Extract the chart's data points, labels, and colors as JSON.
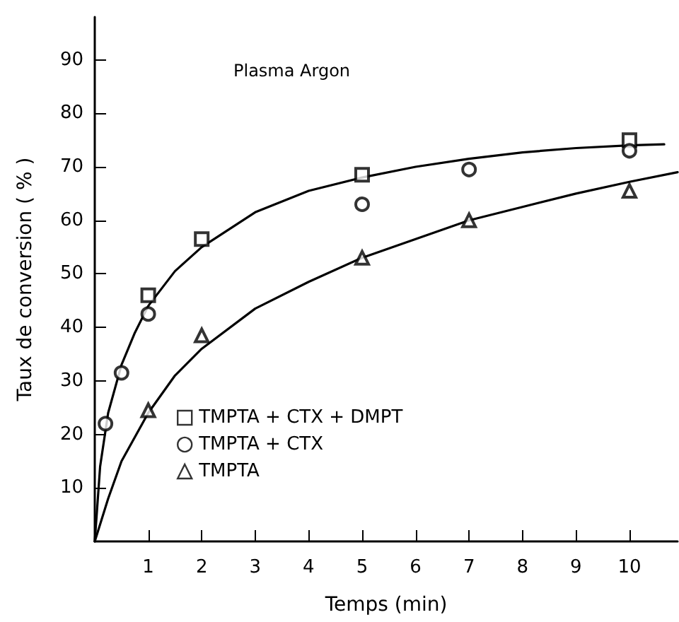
{
  "chart_data": {
    "type": "scatter",
    "xlabel": "Temps (min)",
    "ylabel": "Taux de conversion ( % )",
    "annotations": [
      "Plasma Argon"
    ],
    "xlim": [
      0,
      10.9
    ],
    "xticks": [
      1,
      2,
      3,
      4,
      5,
      6,
      7,
      8,
      9,
      10
    ],
    "ylim": [
      0,
      98
    ],
    "yticks": [
      10,
      20,
      30,
      40,
      50,
      60,
      70,
      80,
      90
    ],
    "grid": false,
    "legend": "bottom left",
    "series": [
      {
        "name": "TMPTA + CTX + DMPT",
        "color": "#000000",
        "marker": "square",
        "x": [
          1,
          2,
          5,
          10
        ],
        "values": [
          46,
          56.5,
          68.5,
          75
        ]
      },
      {
        "name": "TMPTA + CTX",
        "color": "#000000",
        "marker": "circle",
        "x": [
          0.2,
          0.5,
          1,
          5,
          7,
          10
        ],
        "values": [
          22,
          31.5,
          42.5,
          63,
          69.5,
          73
        ]
      },
      {
        "name": "TMPTA",
        "color": "#000000",
        "marker": "triangle",
        "x": [
          1,
          2,
          5,
          7,
          10
        ],
        "values": [
          24.5,
          38.5,
          53,
          60,
          65.5
        ]
      },
      {
        "type": "line",
        "color": "#000000",
        "marker": "none",
        "x": [
          0,
          0.1,
          0.25,
          0.5,
          0.75,
          1,
          1.5,
          2,
          3,
          4,
          5,
          6,
          7,
          8,
          9,
          10,
          10.65
        ],
        "values": [
          0,
          14,
          24,
          33,
          39,
          44,
          50.5,
          55,
          61.5,
          65.5,
          68,
          70,
          71.5,
          72.7,
          73.5,
          74,
          74.2
        ]
      },
      {
        "type": "line",
        "color": "#000000",
        "marker": "none",
        "x": [
          0,
          0.25,
          0.5,
          1,
          1.5,
          2,
          3,
          4,
          5,
          6,
          7,
          8,
          9,
          10,
          10.9
        ],
        "values": [
          0,
          8,
          15,
          24,
          31,
          36,
          43.5,
          48.5,
          53,
          56.5,
          60,
          62.5,
          65,
          67.2,
          69
        ]
      }
    ]
  }
}
